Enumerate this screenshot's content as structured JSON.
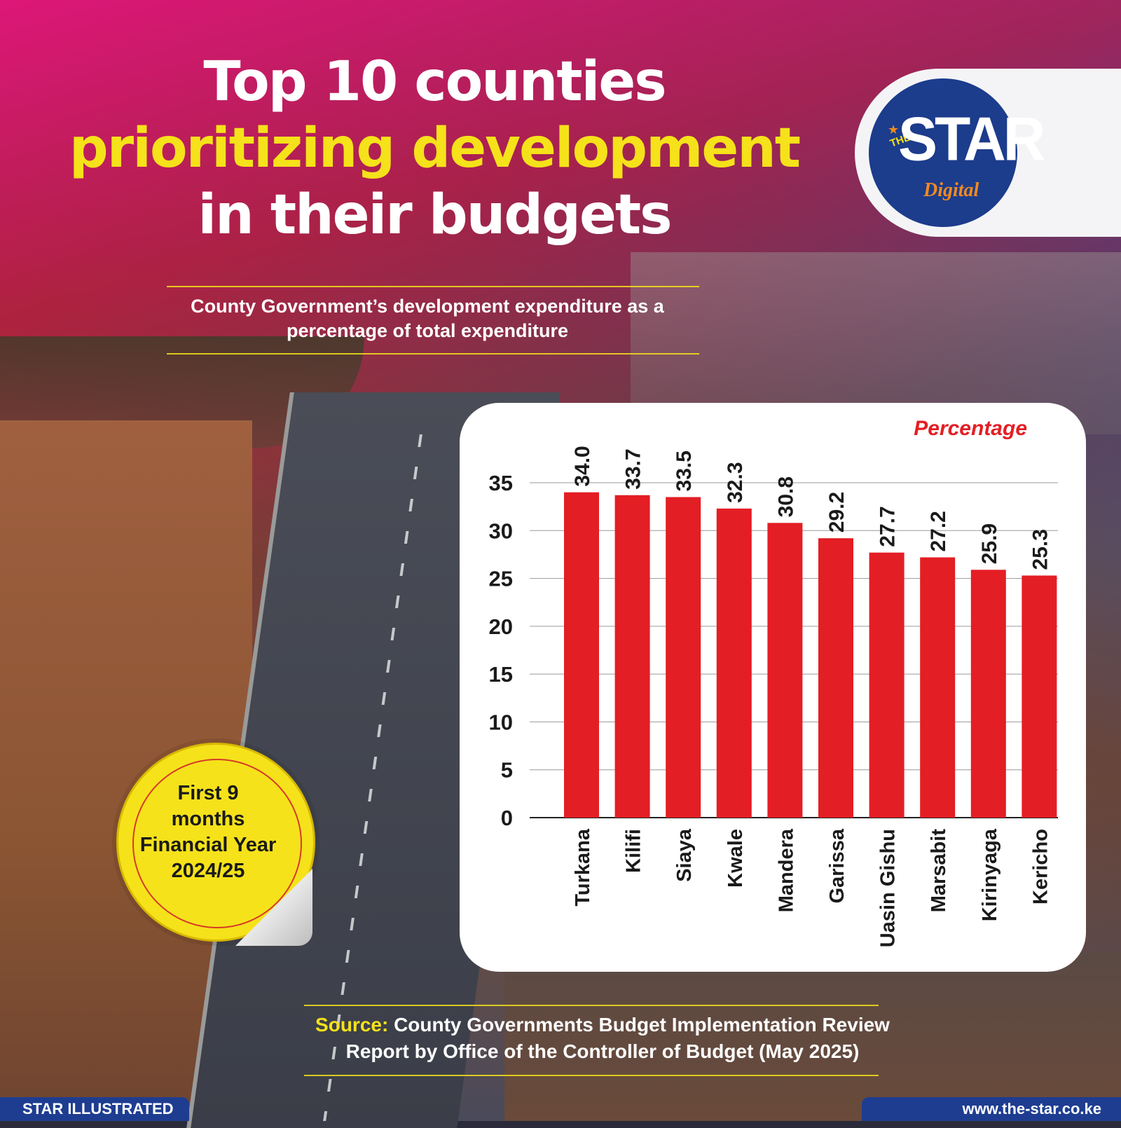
{
  "title": {
    "line1": "Top 10 counties",
    "line2": "prioritizing development",
    "line3": "in their budgets"
  },
  "subtitle": {
    "line1": "County Government’s development expenditure as a",
    "line2": "percentage of total expenditure"
  },
  "logo": {
    "the": "THE",
    "star": "STAR",
    "digital": "Digital"
  },
  "badge": {
    "line1": "First 9",
    "line2": "months",
    "line3": "Financial Year",
    "line4": "2024/25"
  },
  "source": {
    "label": "Source:",
    "line1": "County Governments Budget Implementation Review",
    "line2": "Report by Office of the Controller of Budget (May 2025)"
  },
  "footer": {
    "left": "STAR ILLUSTRATED",
    "right": "www.the-star.co.ke"
  },
  "colors": {
    "bar": "#e31e24",
    "accent_yellow": "#f5e21a",
    "brand_blue": "#1e3d91"
  },
  "chart_data": {
    "type": "bar",
    "unit_label": "Percentage",
    "categories": [
      "Turkana",
      "Kilifi",
      "Siaya",
      "Kwale",
      "Mandera",
      "Garissa",
      "Uasin Gishu",
      "Marsabit",
      "Kirinyaga",
      "Kericho"
    ],
    "values": [
      34.0,
      33.7,
      33.5,
      32.3,
      30.8,
      29.2,
      27.7,
      27.2,
      25.9,
      25.3
    ],
    "value_labels": [
      "34.0",
      "33.7",
      "33.5",
      "32.3",
      "30.8",
      "29.2",
      "27.7",
      "27.2",
      "25.9",
      "25.3"
    ],
    "yticks": [
      0,
      5,
      10,
      15,
      20,
      25,
      30,
      35
    ],
    "ylim": [
      0,
      35
    ],
    "grid": true,
    "legend": "none"
  }
}
